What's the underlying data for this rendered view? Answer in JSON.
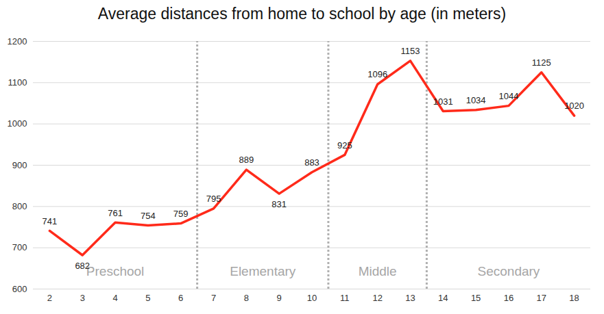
{
  "chart_data": {
    "type": "line",
    "title": "Average distances from home to school by age (in meters)",
    "x": [
      2,
      3,
      4,
      5,
      6,
      7,
      8,
      9,
      10,
      11,
      12,
      13,
      14,
      15,
      16,
      17,
      18
    ],
    "values": [
      741,
      682,
      761,
      754,
      759,
      795,
      889,
      831,
      883,
      925,
      1096,
      1153,
      1031,
      1034,
      1044,
      1125,
      1020
    ],
    "color": "#ff2a1a",
    "xlim": [
      1.5,
      18.5
    ],
    "xticks": [
      2,
      3,
      4,
      5,
      6,
      7,
      8,
      9,
      10,
      11,
      12,
      13,
      14,
      15,
      16,
      17,
      18
    ],
    "ylim": [
      600,
      1200
    ],
    "yticks": [
      600,
      700,
      800,
      900,
      1000,
      1100,
      1200
    ],
    "grid": true,
    "data_labels": true,
    "sections": [
      {
        "label": "Preschool",
        "start": 2,
        "end": 6
      },
      {
        "label": "Elementary",
        "start": 7,
        "end": 10
      },
      {
        "label": "Middle",
        "start": 11,
        "end": 13
      },
      {
        "label": "Secondary",
        "start": 14,
        "end": 18
      }
    ]
  }
}
